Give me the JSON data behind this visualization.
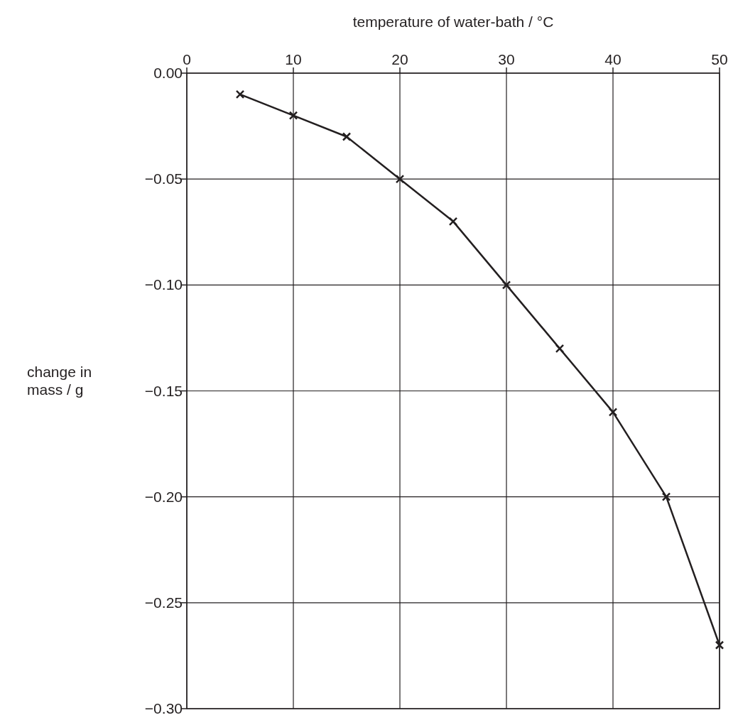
{
  "chart_data": {
    "type": "line",
    "xlabel": "temperature of water-bath / °C",
    "ylabel": "change in mass / g",
    "x": [
      5,
      10,
      15,
      20,
      25,
      30,
      35,
      40,
      45,
      50
    ],
    "series": [
      {
        "color": "#231f20",
        "values": [
          -0.01,
          -0.02,
          -0.03,
          -0.05,
          -0.07,
          -0.1,
          -0.13,
          -0.16,
          -0.2,
          -0.27
        ]
      }
    ],
    "xlim": [
      0,
      50
    ],
    "xticks": [
      0,
      10,
      20,
      30,
      40,
      50
    ],
    "ylim": [
      -0.3,
      0
    ],
    "yticks": [
      {
        "value": 0,
        "label": "0.00"
      },
      {
        "value": -0.05,
        "label": "−0.05"
      },
      {
        "value": -0.1,
        "label": "−0.10"
      },
      {
        "value": -0.15,
        "label": "−0.15"
      },
      {
        "value": -0.2,
        "label": "−0.20"
      },
      {
        "value": -0.25,
        "label": "−0.25"
      },
      {
        "value": -0.3,
        "label": "−0.30"
      }
    ],
    "grid": true,
    "marker": "cross",
    "line_style": "solid"
  }
}
